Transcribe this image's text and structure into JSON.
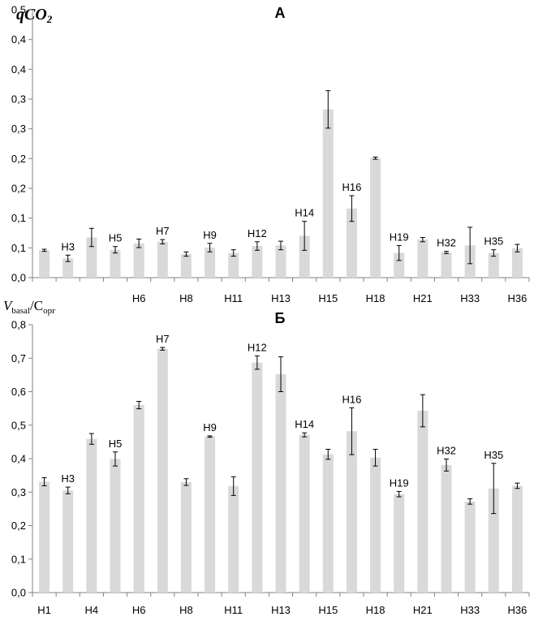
{
  "chart_data": [
    {
      "type": "bar",
      "panel": "A",
      "title": "А",
      "ylabel": "qCO₂",
      "ylabel_main": "qCO",
      "ylabel_sub": "2",
      "ylim": [
        0,
        0.5
      ],
      "yticks": [
        "0,0",
        "0,1",
        "0,1",
        "0,2",
        "0,2",
        "0,3",
        "0,3",
        "0,4",
        "0,4",
        "0,5"
      ],
      "values": [
        0.051,
        0.036,
        0.075,
        0.052,
        0.064,
        0.067,
        0.044,
        0.056,
        0.046,
        0.059,
        0.06,
        0.078,
        0.314,
        0.129,
        0.223,
        0.046,
        0.071,
        0.047,
        0.06,
        0.046,
        0.055
      ],
      "errors": [
        0.002,
        0.006,
        0.017,
        0.006,
        0.008,
        0.004,
        0.004,
        0.008,
        0.006,
        0.008,
        0.008,
        0.027,
        0.035,
        0.024,
        0.002,
        0.014,
        0.004,
        0.002,
        0.034,
        0.006,
        0.007
      ],
      "bar_labels": [
        "",
        "H3",
        "",
        "H5",
        "",
        "H7",
        "",
        "H9",
        "",
        "H12",
        "",
        "H14",
        "",
        "H16",
        "",
        "H19",
        "",
        "H32",
        "",
        "H35",
        ""
      ],
      "categories": [
        "",
        "",
        "",
        "",
        "H6",
        "",
        "H8",
        "",
        "H11",
        "",
        "H13",
        "",
        "H15",
        "",
        "H18",
        "",
        "H21",
        "",
        "H33",
        "",
        "H36"
      ]
    },
    {
      "type": "bar",
      "panel": "Б",
      "title": "Б",
      "ylabel": "Vbasal/Cорг",
      "ylabel_v": "V",
      "ylabel_sub": "basal",
      "ylabel_rest": "/C",
      "ylabel_sub2": "орг",
      "ylim": [
        0,
        0.8
      ],
      "yticks": [
        "0,0",
        "0,1",
        "0,2",
        "0,3",
        "0,4",
        "0,5",
        "0,6",
        "0,7",
        "0,8"
      ],
      "values": [
        0.331,
        0.305,
        0.459,
        0.399,
        0.56,
        0.728,
        0.33,
        0.466,
        0.318,
        0.687,
        0.652,
        0.471,
        0.413,
        0.482,
        0.403,
        0.294,
        0.543,
        0.381,
        0.272,
        0.311,
        0.319
      ],
      "errors": [
        0.012,
        0.01,
        0.016,
        0.021,
        0.011,
        0.004,
        0.01,
        0.002,
        0.028,
        0.02,
        0.052,
        0.006,
        0.015,
        0.07,
        0.025,
        0.008,
        0.048,
        0.018,
        0.008,
        0.075,
        0.008
      ],
      "bar_labels": [
        "",
        "H3",
        "",
        "H5",
        "",
        "H7",
        "",
        "H9",
        "",
        "H12",
        "",
        "H14",
        "",
        "H16",
        "",
        "H19",
        "",
        "H32",
        "",
        "H35",
        ""
      ],
      "categories": [
        "H1",
        "",
        "H4",
        "",
        "H6",
        "",
        "H8",
        "",
        "H11",
        "",
        "H13",
        "",
        "H15",
        "",
        "H18",
        "",
        "H21",
        "",
        "H33",
        "",
        "H36"
      ]
    }
  ],
  "colors": {
    "bar": "#d9d9d9",
    "axis": "#808080",
    "error": "#000000"
  }
}
